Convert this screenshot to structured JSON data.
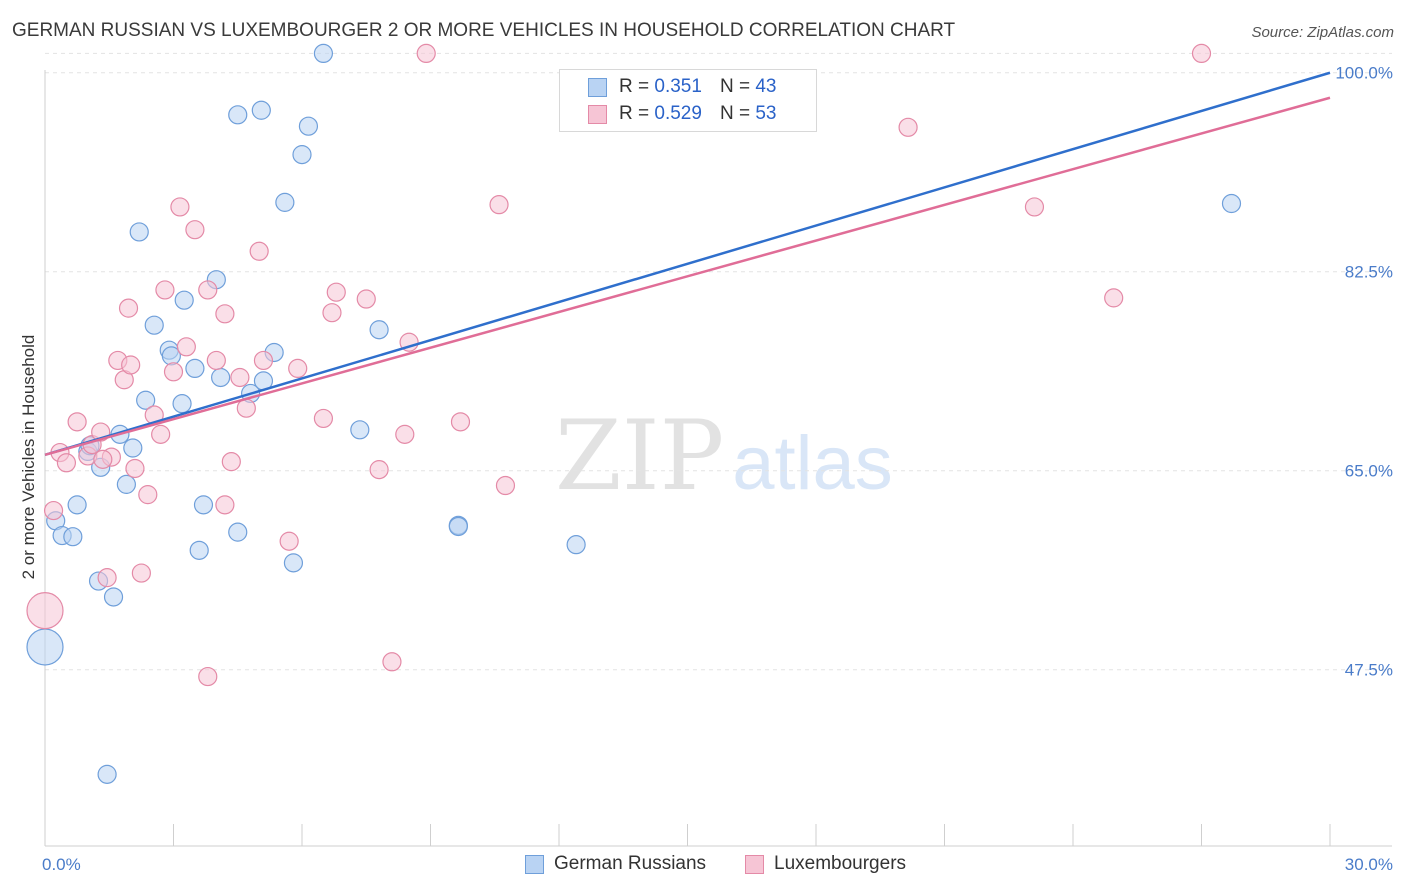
{
  "header": {
    "title": "GERMAN RUSSIAN VS LUXEMBOURGER 2 OR MORE VEHICLES IN HOUSEHOLD CORRELATION CHART",
    "source": "Source: ZipAtlas.com"
  },
  "watermark": {
    "zip": "ZIP",
    "atlas": "atlas"
  },
  "legend": {
    "rows": [
      {
        "r_label": "R =",
        "r_value": "0.351",
        "n_label": "N =",
        "n_value": "43"
      },
      {
        "r_label": "R =",
        "r_value": "0.529",
        "n_label": "N =",
        "n_value": "53"
      }
    ]
  },
  "bottom_legend": {
    "series1": "German Russians",
    "series2": "Luxembourgers"
  },
  "colors": {
    "blue_fill": "#b9d3f3",
    "blue_stroke": "#6f9fda",
    "blue_line": "#2f6fcc",
    "pink_fill": "#f6c5d5",
    "pink_stroke": "#e48aa7",
    "pink_line": "#e06d97",
    "grid": "#e3e3e3",
    "tick_label": "#4a7cc9"
  },
  "chart_data": {
    "type": "scatter",
    "title": "GERMAN RUSSIAN VS LUXEMBOURGER 2 OR MORE VEHICLES IN HOUSEHOLD CORRELATION CHART",
    "xlabel": "",
    "ylabel": "2 or more Vehicles in Household",
    "xlim": [
      0,
      30
    ],
    "ylim": [
      32,
      102
    ],
    "x_tick_labels": [
      {
        "value": 0,
        "label": "0.0%"
      },
      {
        "value": 30,
        "label": "30.0%"
      }
    ],
    "y_tick_labels": [
      {
        "value": 47.5,
        "label": "47.5%"
      },
      {
        "value": 65.0,
        "label": "65.0%"
      },
      {
        "value": 82.5,
        "label": "82.5%"
      },
      {
        "value": 100.0,
        "label": "100.0%"
      }
    ],
    "x_minor_ticks": [
      0,
      3,
      6,
      9,
      12,
      15,
      18,
      21,
      24,
      27,
      30
    ],
    "grid": true,
    "legend_position": "top-center",
    "series": [
      {
        "name": "German Russians",
        "r": 0.351,
        "n": 43,
        "trend": {
          "x": [
            0,
            30
          ],
          "y": [
            66.4,
            100.0
          ]
        },
        "points": [
          {
            "x": 0.0,
            "y": 49.5,
            "s": 2
          },
          {
            "x": 0.25,
            "y": 60.6
          },
          {
            "x": 0.4,
            "y": 59.3
          },
          {
            "x": 0.65,
            "y": 59.2
          },
          {
            "x": 0.75,
            "y": 62.0
          },
          {
            "x": 1.0,
            "y": 66.7
          },
          {
            "x": 1.05,
            "y": 67.2
          },
          {
            "x": 1.3,
            "y": 65.3
          },
          {
            "x": 1.25,
            "y": 55.3
          },
          {
            "x": 1.6,
            "y": 53.9
          },
          {
            "x": 1.75,
            "y": 68.2
          },
          {
            "x": 1.9,
            "y": 63.8
          },
          {
            "x": 2.05,
            "y": 67.0
          },
          {
            "x": 2.2,
            "y": 86.0
          },
          {
            "x": 2.35,
            "y": 71.2
          },
          {
            "x": 2.55,
            "y": 77.8
          },
          {
            "x": 2.9,
            "y": 75.6
          },
          {
            "x": 2.95,
            "y": 75.1
          },
          {
            "x": 3.2,
            "y": 70.9
          },
          {
            "x": 3.25,
            "y": 80.0
          },
          {
            "x": 3.5,
            "y": 74.0
          },
          {
            "x": 3.6,
            "y": 58.0
          },
          {
            "x": 3.7,
            "y": 62.0
          },
          {
            "x": 4.0,
            "y": 81.8
          },
          {
            "x": 4.1,
            "y": 73.2
          },
          {
            "x": 4.5,
            "y": 96.3
          },
          {
            "x": 4.5,
            "y": 59.6
          },
          {
            "x": 4.8,
            "y": 71.8
          },
          {
            "x": 5.05,
            "y": 96.7
          },
          {
            "x": 5.1,
            "y": 72.9
          },
          {
            "x": 5.35,
            "y": 75.4
          },
          {
            "x": 5.6,
            "y": 88.6
          },
          {
            "x": 5.8,
            "y": 56.9
          },
          {
            "x": 6.0,
            "y": 92.8
          },
          {
            "x": 6.15,
            "y": 95.3
          },
          {
            "x": 6.5,
            "y": 101.7
          },
          {
            "x": 7.35,
            "y": 68.6
          },
          {
            "x": 7.8,
            "y": 77.4
          },
          {
            "x": 9.65,
            "y": 60.2
          },
          {
            "x": 9.65,
            "y": 60.1
          },
          {
            "x": 12.4,
            "y": 58.5
          },
          {
            "x": 27.7,
            "y": 88.5
          },
          {
            "x": 1.45,
            "y": 38.3
          }
        ]
      },
      {
        "name": "Luxembourgers",
        "r": 0.529,
        "n": 53,
        "trend": {
          "x": [
            0,
            30
          ],
          "y": [
            66.4,
            97.8
          ]
        },
        "points": [
          {
            "x": 0.0,
            "y": 52.7,
            "s": 2
          },
          {
            "x": 0.2,
            "y": 61.5
          },
          {
            "x": 0.35,
            "y": 66.6
          },
          {
            "x": 0.5,
            "y": 65.7
          },
          {
            "x": 0.75,
            "y": 69.3
          },
          {
            "x": 1.0,
            "y": 66.3
          },
          {
            "x": 1.1,
            "y": 67.3
          },
          {
            "x": 1.3,
            "y": 68.4
          },
          {
            "x": 1.45,
            "y": 55.6
          },
          {
            "x": 1.55,
            "y": 66.2
          },
          {
            "x": 1.7,
            "y": 74.7
          },
          {
            "x": 1.85,
            "y": 73.0
          },
          {
            "x": 1.95,
            "y": 79.3
          },
          {
            "x": 2.1,
            "y": 65.2
          },
          {
            "x": 2.25,
            "y": 56.0
          },
          {
            "x": 2.4,
            "y": 62.9
          },
          {
            "x": 2.55,
            "y": 69.9
          },
          {
            "x": 2.7,
            "y": 68.2
          },
          {
            "x": 2.8,
            "y": 80.9
          },
          {
            "x": 3.0,
            "y": 73.7
          },
          {
            "x": 3.15,
            "y": 88.2
          },
          {
            "x": 3.3,
            "y": 75.9
          },
          {
            "x": 3.5,
            "y": 86.2
          },
          {
            "x": 3.8,
            "y": 80.9
          },
          {
            "x": 3.8,
            "y": 46.9
          },
          {
            "x": 4.0,
            "y": 74.7
          },
          {
            "x": 4.2,
            "y": 78.8
          },
          {
            "x": 4.2,
            "y": 62.0
          },
          {
            "x": 4.35,
            "y": 65.8
          },
          {
            "x": 4.55,
            "y": 73.2
          },
          {
            "x": 4.7,
            "y": 70.5
          },
          {
            "x": 5.0,
            "y": 84.3
          },
          {
            "x": 5.1,
            "y": 74.7
          },
          {
            "x": 5.7,
            "y": 58.8
          },
          {
            "x": 5.9,
            "y": 74.0
          },
          {
            "x": 6.5,
            "y": 69.6
          },
          {
            "x": 6.7,
            "y": 78.9
          },
          {
            "x": 6.8,
            "y": 80.7
          },
          {
            "x": 7.5,
            "y": 80.1
          },
          {
            "x": 7.8,
            "y": 65.1
          },
          {
            "x": 8.1,
            "y": 48.2
          },
          {
            "x": 8.5,
            "y": 76.3
          },
          {
            "x": 8.4,
            "y": 68.2
          },
          {
            "x": 8.9,
            "y": 101.7
          },
          {
            "x": 9.7,
            "y": 69.3
          },
          {
            "x": 10.6,
            "y": 88.4
          },
          {
            "x": 10.75,
            "y": 63.7
          },
          {
            "x": 20.15,
            "y": 95.2
          },
          {
            "x": 23.1,
            "y": 88.2
          },
          {
            "x": 24.95,
            "y": 80.2
          },
          {
            "x": 27.0,
            "y": 101.7
          },
          {
            "x": 2.0,
            "y": 74.3
          },
          {
            "x": 1.35,
            "y": 66.0
          }
        ]
      }
    ]
  }
}
